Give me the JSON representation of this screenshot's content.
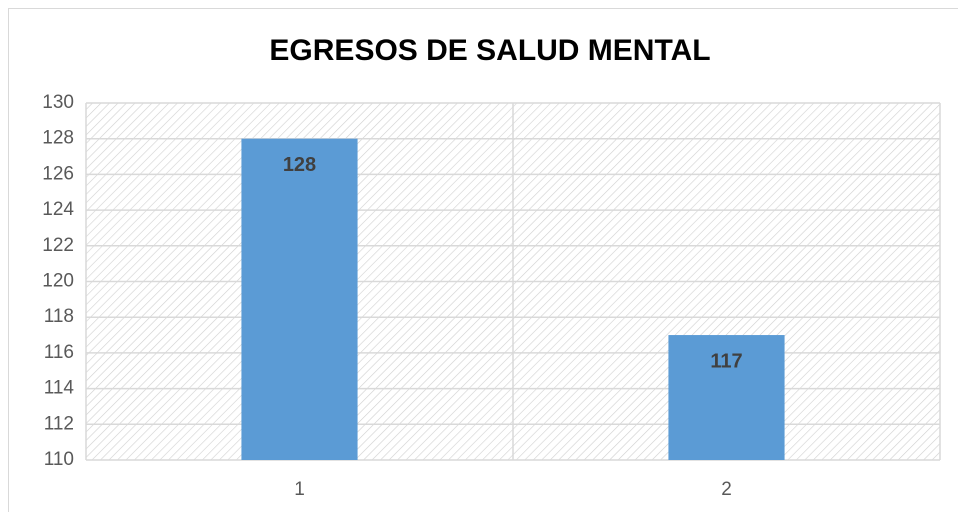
{
  "chart_data": {
    "type": "bar",
    "title": "EGRESOS DE SALUD MENTAL",
    "categories": [
      "1",
      "2"
    ],
    "values": [
      128,
      117
    ],
    "color": "#5b9bd5",
    "ylim": [
      110,
      130
    ],
    "yticks": [
      110,
      112,
      114,
      116,
      118,
      120,
      122,
      124,
      126,
      128,
      130
    ],
    "grid": true
  }
}
